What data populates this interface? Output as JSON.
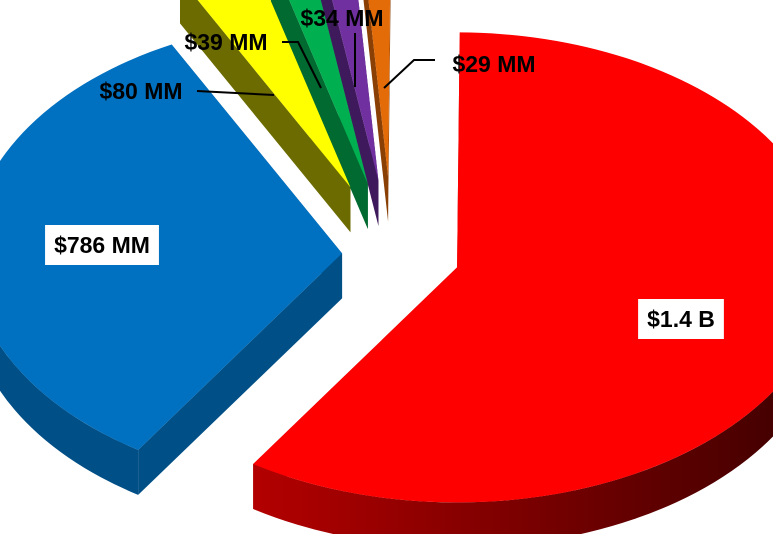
{
  "chart_data": {
    "type": "pie",
    "style": "3d-exploded",
    "legend": "none",
    "categories": [
      "",
      "",
      "",
      "",
      "",
      ""
    ],
    "values": [
      1400,
      786,
      80,
      39,
      34,
      29
    ],
    "value_units": "$ millions",
    "data_labels": [
      "$1.4 B",
      "$786 MM",
      "$80 MM",
      "$39 MM",
      "$34 MM",
      "$29 MM"
    ],
    "colors": [
      "#ff0000",
      "#0070c0",
      "#ffff00",
      "#00b050",
      "#7030a0",
      "#e36c09"
    ],
    "side_colors": [
      "#b30000",
      "#004f86",
      "#6b6b00",
      "#006a30",
      "#3e1a5c",
      "#8a3f05"
    ]
  }
}
